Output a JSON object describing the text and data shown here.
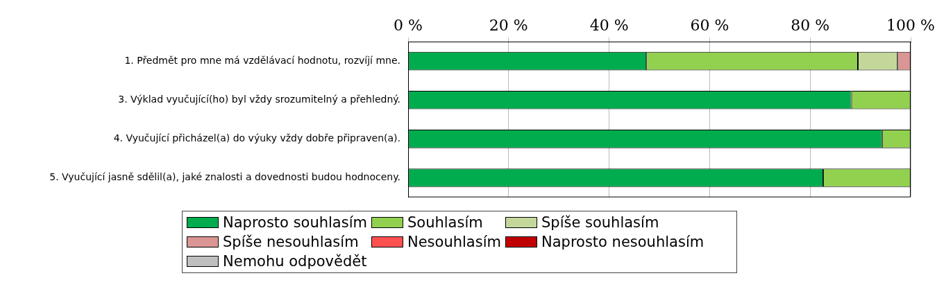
{
  "chart_data": {
    "type": "bar",
    "orientation": "horizontal",
    "stacked": true,
    "categories": [
      "1. Předmět pro mne má vzdělávací hodnotu, rozvíjí mne.",
      "3. Výklad vyučující(ho) byl vždy srozumitelný a přehledný.",
      "4. Vyučující přicházel(a) do výuky vždy dobře připraven(a).",
      "5. Vyučující jasně sdělil(a), jaké znalosti a dovednosti budou hodnoceny."
    ],
    "series": [
      {
        "name": "Naprosto souhlasím",
        "color": "#00ac4e",
        "values": [
          47.4,
          88.2,
          94.3,
          82.6
        ]
      },
      {
        "name": "Souhlasím",
        "color": "#92d050",
        "values": [
          42.1,
          11.8,
          5.7,
          17.4
        ]
      },
      {
        "name": "Spíše souhlasím",
        "color": "#c4d79b",
        "values": [
          7.9,
          0,
          0,
          0
        ]
      },
      {
        "name": "Spíše nesouhlasím",
        "color": "#da9694",
        "values": [
          2.6,
          0,
          0,
          0
        ]
      },
      {
        "name": "Nesouhlasím",
        "color": "#ff5050",
        "values": [
          0,
          0,
          0,
          0
        ]
      },
      {
        "name": "Naprosto nesouhlasím",
        "color": "#c00000",
        "values": [
          0,
          0,
          0,
          0
        ]
      },
      {
        "name": "Nemohu odpovědět",
        "color": "#bfbfbf",
        "values": [
          0,
          0,
          0,
          0
        ]
      }
    ],
    "xlim": [
      0,
      100
    ],
    "xticks": [
      {
        "value": 0,
        "label": "0 %"
      },
      {
        "value": 20,
        "label": "20 %"
      },
      {
        "value": 40,
        "label": "40 %"
      },
      {
        "value": 60,
        "label": "60 %"
      },
      {
        "value": 80,
        "label": "80 %"
      },
      {
        "value": 100,
        "label": "100 %"
      }
    ],
    "grid": "x",
    "legend": "bottom"
  }
}
